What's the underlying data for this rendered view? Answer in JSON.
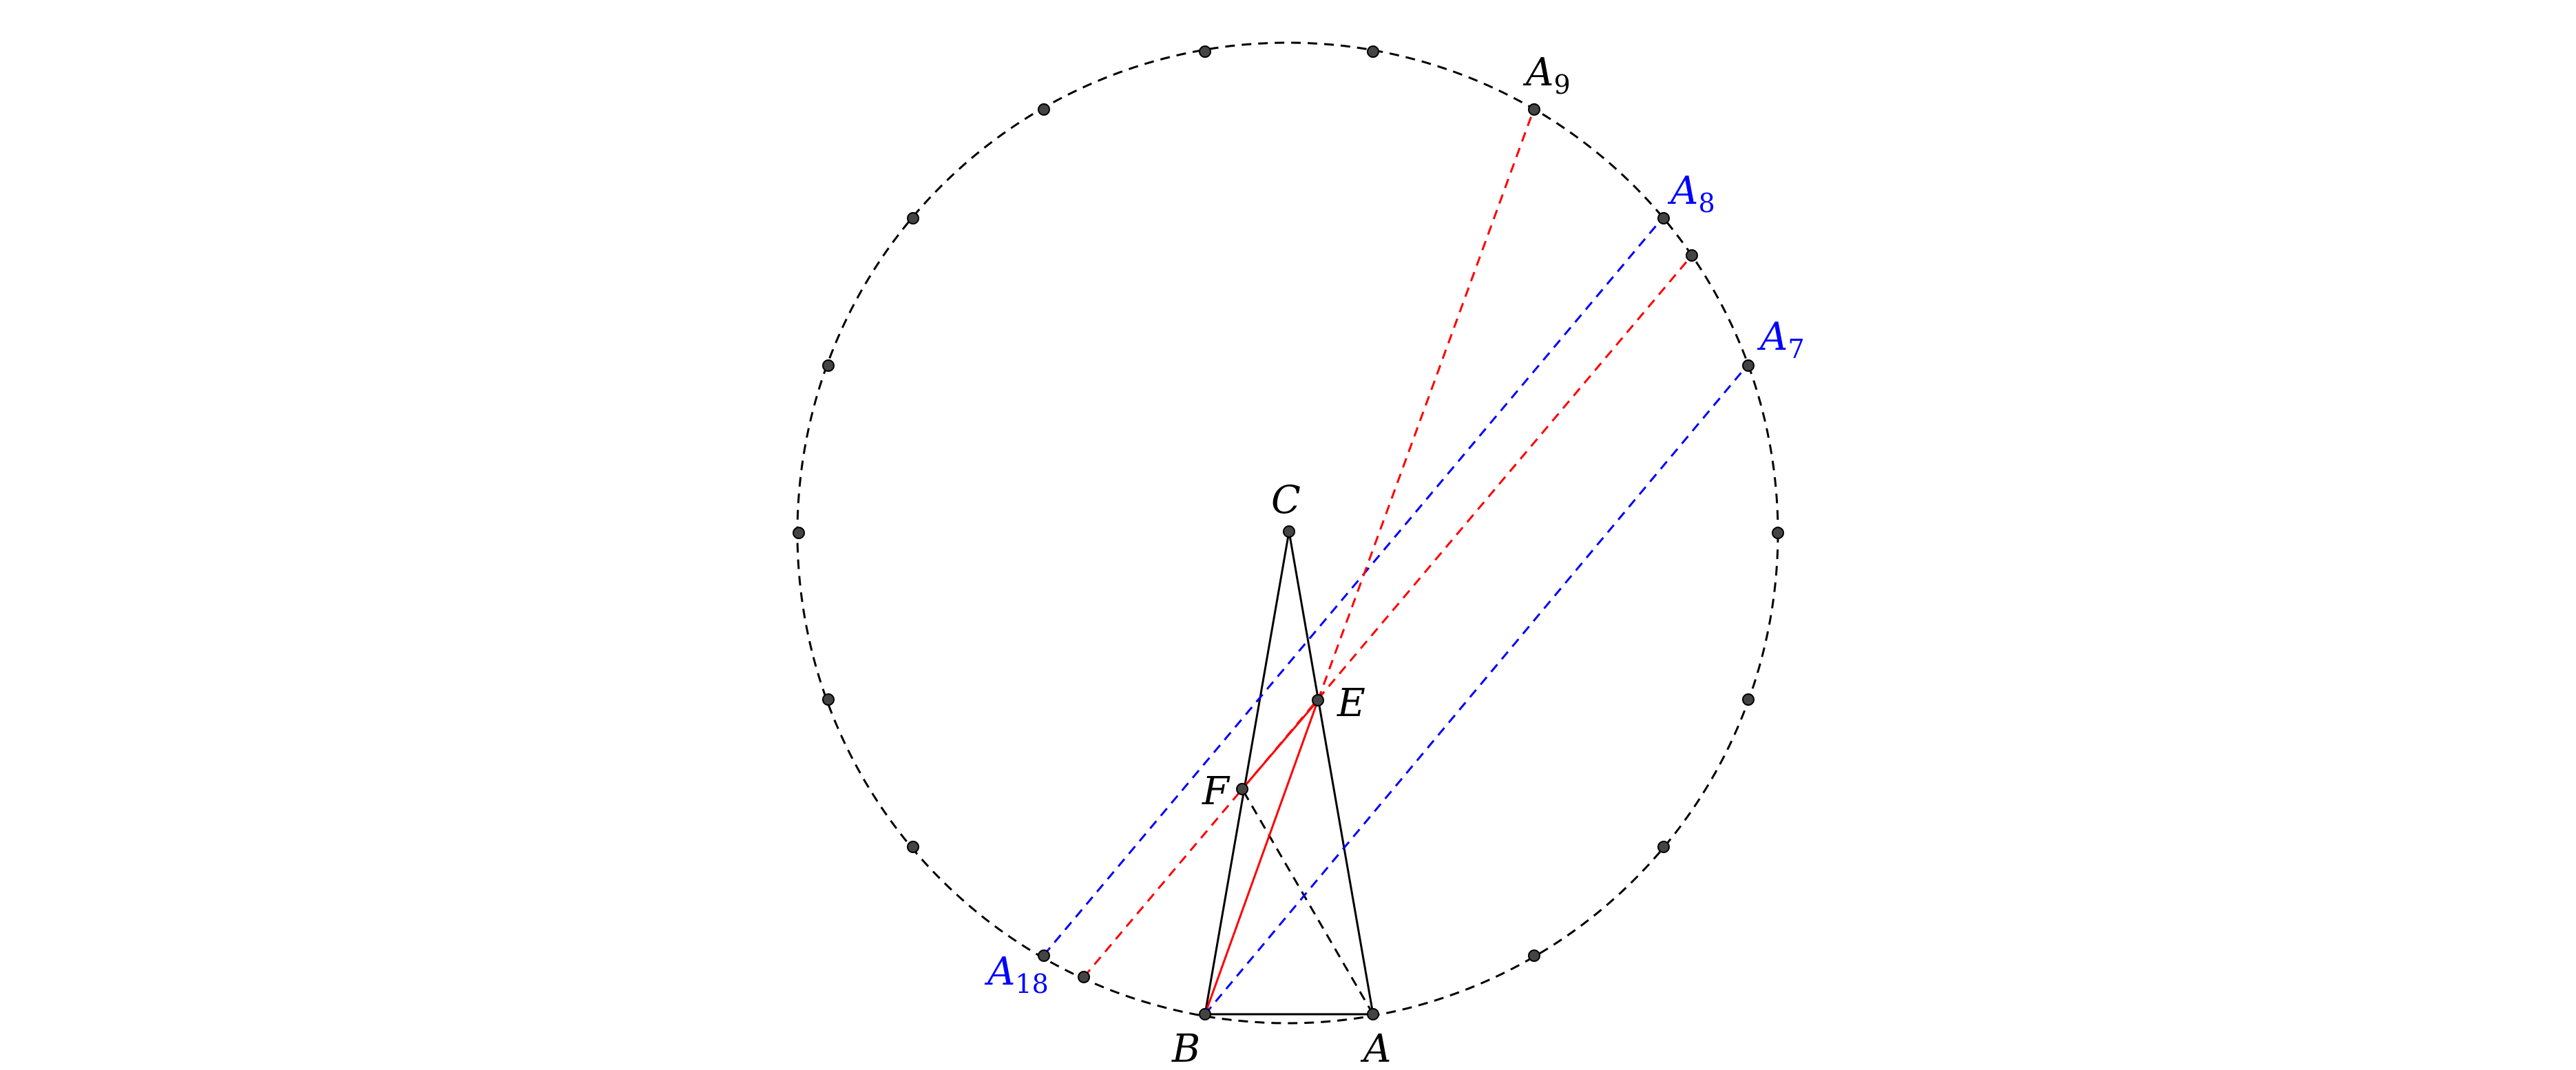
{
  "diagram": {
    "colors": {
      "black": "#000000",
      "red": "#ff0000",
      "blue": "#0000ff",
      "point_fill": "#444444"
    },
    "labels": {
      "A": "A",
      "B": "B",
      "C": "C",
      "E": "E",
      "F": "F",
      "A7": {
        "base": "A",
        "sub": "7"
      },
      "A8": {
        "base": "A",
        "sub": "8"
      },
      "A9": {
        "base": "A",
        "sub": "9"
      },
      "A18": {
        "base": "A",
        "sub": "18"
      }
    },
    "circle_point_count": 18
  }
}
